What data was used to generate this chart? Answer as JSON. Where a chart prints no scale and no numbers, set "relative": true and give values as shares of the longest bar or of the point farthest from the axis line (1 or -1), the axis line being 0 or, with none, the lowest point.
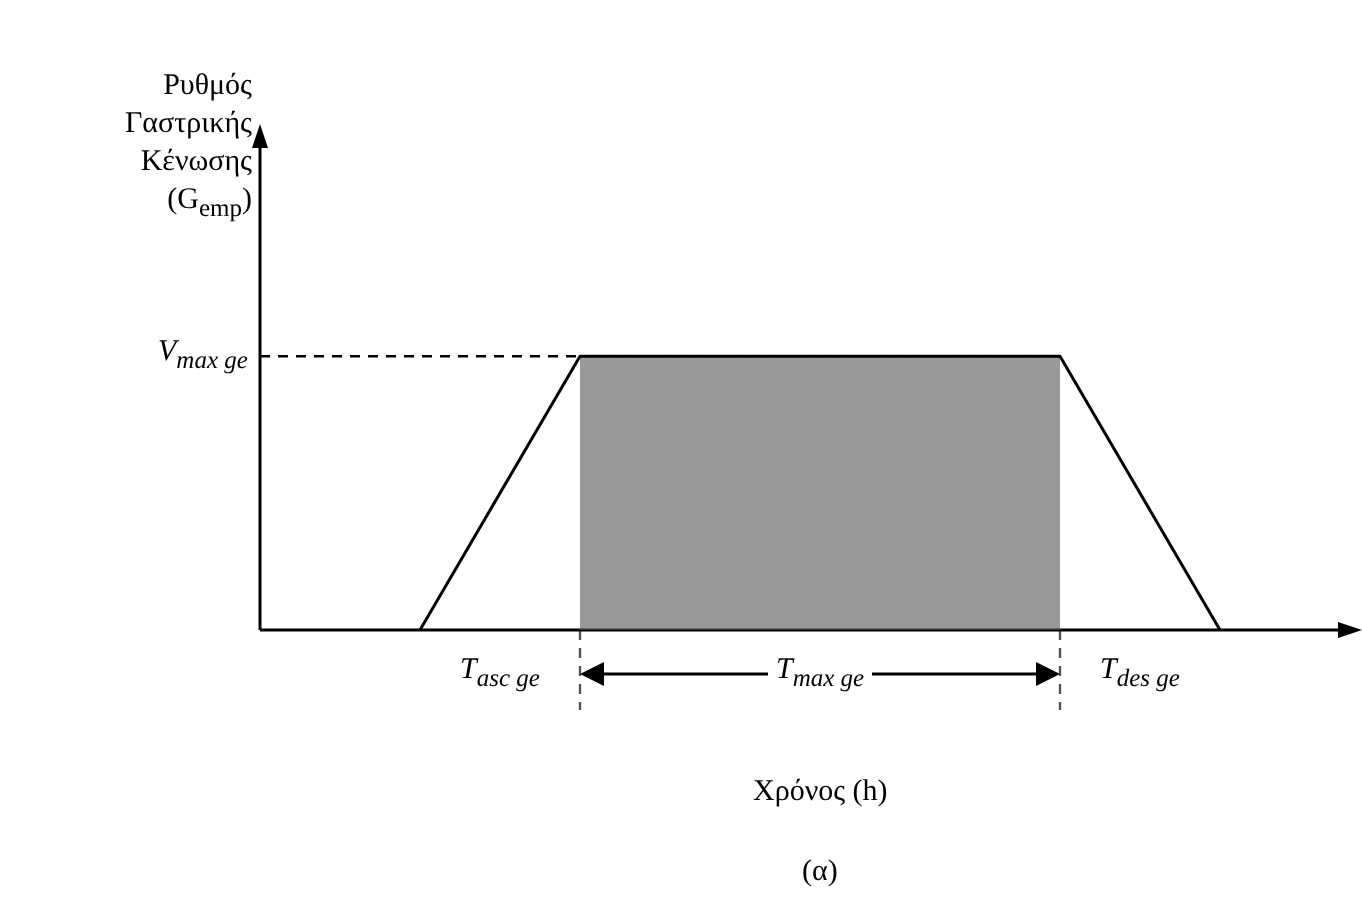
{
  "chart_data": {
    "type": "line",
    "relative": true,
    "ylabel": "Ρυθμός Γαστρικής Κένωσης (G$_{emp}$)",
    "xlabel": "Χρόνος (h)",
    "categories": [
      null,
      null,
      null,
      null,
      null,
      null,
      null
    ],
    "series": [
      {
        "color": "#000000",
        "values": [
          null,
          0,
          1,
          1,
          1,
          1,
          0
        ]
      },
      {
        "type": "area",
        "color": "#555555",
        "line_style": "dashed",
        "values": [
          null,
          null,
          1,
          1,
          1,
          1,
          null
        ]
      }
    ],
    "ref_lines": [
      {
        "axis": "y",
        "value": 1,
        "label": "V$_{max ge}$",
        "line_style": "dashed"
      }
    ],
    "annotations": [
      "T$_{asc ge}$",
      "T$_{max ge}$",
      "T$_{des ge}$",
      "(α)"
    ],
    "legend": false,
    "marker": "none"
  }
}
